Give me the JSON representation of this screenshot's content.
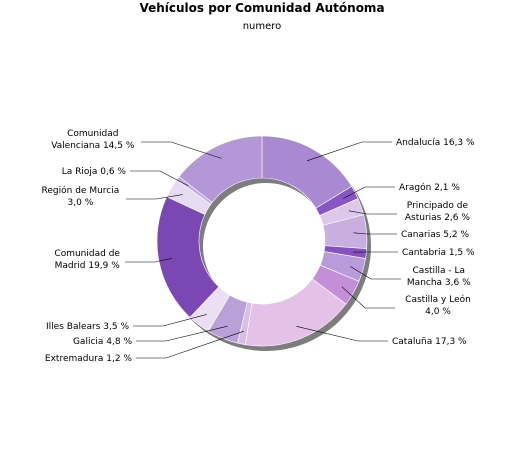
{
  "chart_data": {
    "type": "pie",
    "title": "Vehículos por Comunidad Autónoma",
    "subtitle": "numero",
    "unit": "%",
    "slices": [
      {
        "label": "Andalucía 16,3 %",
        "value": 16.3,
        "color": "#a989d2"
      },
      {
        "label": "Aragón 2,1 %",
        "value": 2.1,
        "color": "#8756c4"
      },
      {
        "label": "Principado de Asturias 2,6 %",
        "value": 2.6,
        "color": "#dcc9ea"
      },
      {
        "label": "Canarias 5,2 %",
        "value": 5.2,
        "color": "#c9aee0"
      },
      {
        "label": "Cantabria 1,5 %",
        "value": 1.5,
        "color": "#8652bf"
      },
      {
        "label": "Castilla - La Mancha 3,6 %",
        "value": 3.6,
        "color": "#b79bda"
      },
      {
        "label": "Castilla y León 4,0 %",
        "value": 4.0,
        "color": "#c48fd6"
      },
      {
        "label": "Cataluña 17,3 %",
        "value": 17.3,
        "color": "#e4c1e6"
      },
      {
        "label": "Extremadura 1,2 %",
        "value": 1.2,
        "color": "#d7bfe8"
      },
      {
        "label": "Galicia 4,8 %",
        "value": 4.8,
        "color": "#b9a0d9"
      },
      {
        "label": "Illes Balears 3,5 %",
        "value": 3.5,
        "color": "#ebe0f3"
      },
      {
        "label": "Comunidad de Madrid 19,9 %",
        "value": 19.9,
        "color": "#7b48b3"
      },
      {
        "label": "Región de Murcia 3,0 %",
        "value": 3.0,
        "color": "#e6dbf1"
      },
      {
        "label": "La Rioja 0,6 %",
        "value": 0.6,
        "color": "#c2abe0"
      },
      {
        "label": "Comunidad Valenciana 14,5 %",
        "value": 14.5,
        "color": "#b497d6"
      }
    ]
  }
}
